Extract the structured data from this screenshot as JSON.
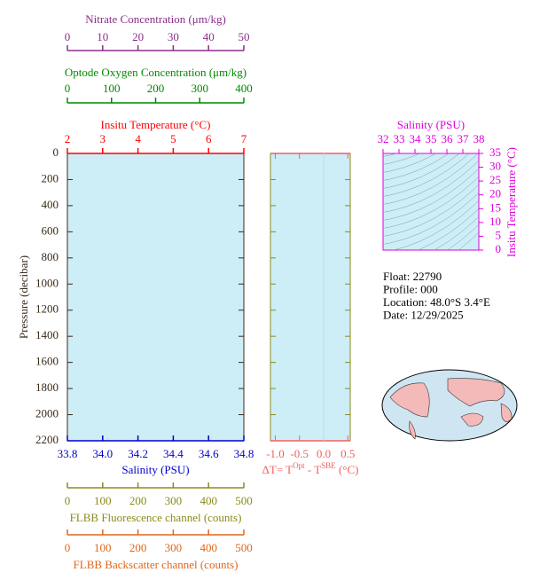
{
  "chart_data": [
    {
      "type": "profile",
      "ylabel": "Pressure (decibar)",
      "ylim": [
        0,
        2200
      ],
      "yticks": [
        0,
        200,
        400,
        600,
        800,
        1000,
        1200,
        1400,
        1600,
        1800,
        2000,
        2200
      ],
      "axes": [
        {
          "name": "Nitrate Concentration (μm/kg)",
          "color": "#8b2f8b",
          "xlim": [
            0,
            50
          ],
          "xticks": [
            0,
            10,
            20,
            30,
            40,
            50
          ]
        },
        {
          "name": "Optode Oxygen Concentration (μm/kg)",
          "color": "#008a00",
          "xlim": [
            0,
            400
          ],
          "xticks": [
            0,
            100,
            200,
            300,
            400
          ]
        },
        {
          "name": "Insitu Temperature (°C)",
          "color": "#ff0000",
          "xlim": [
            2,
            7
          ],
          "xticks": [
            2,
            3,
            4,
            5,
            6,
            7
          ]
        },
        {
          "name": "Salinity (PSU)",
          "color": "#0000cc",
          "xlim": [
            33.8,
            34.8
          ],
          "xticks": [
            33.8,
            {
              "value": 34,
              "label": "34.0"
            },
            34.2,
            34.4,
            34.6,
            34.8
          ]
        },
        {
          "name": "FLBB Fluorescence channel (counts)",
          "color": "#8b8b1a",
          "xlim": [
            0,
            500
          ],
          "xticks": [
            0,
            100,
            200,
            300,
            400,
            500
          ]
        },
        {
          "name": "FLBB Backscatter channel (counts)",
          "color": "#e0661a",
          "xlim": [
            0,
            500
          ],
          "xticks": [
            0,
            100,
            200,
            300,
            400,
            500
          ]
        }
      ]
    },
    {
      "type": "difference",
      "xlabel": [
        "ΔT= T",
        "Opt",
        " - T",
        "SBE",
        " (°C)"
      ],
      "color": "#f06060",
      "xlim": [
        -1.1,
        0.55
      ],
      "xticks": [
        {
          "value": -1,
          "label": "-1.0"
        },
        -0.5,
        {
          "value": 0,
          "label": "0.0"
        },
        0.5
      ]
    },
    {
      "type": "ts",
      "color": "#dd00dd",
      "xlabel": "Salinity (PSU)",
      "ylabel": "Insitu Temperature (°C)",
      "xlim": [
        32,
        38
      ],
      "xticks": [
        32,
        33,
        34,
        35,
        36,
        37,
        38
      ],
      "ylim": [
        0,
        35
      ],
      "yticks": [
        0,
        5,
        10,
        15,
        20,
        25,
        30,
        35
      ]
    }
  ],
  "float_info": [
    "Float:  22790",
    "Profile:  000",
    "Location:  48.0°S   3.4°E",
    "Date:  12/29/2025"
  ]
}
